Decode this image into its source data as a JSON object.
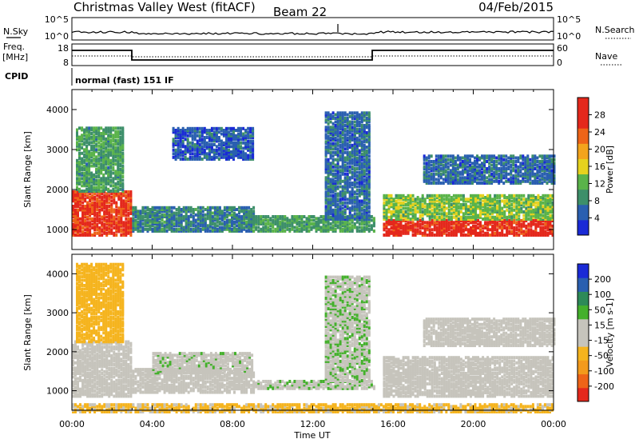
{
  "header": {
    "station": "Christmas Valley West (fitACF)",
    "beam": "Beam 22",
    "date": "04/Feb/2015"
  },
  "strip_labels": {
    "nsky": "N.Sky",
    "nsky_tick_hi": "10^5",
    "nsky_tick_lo": "10^0",
    "nsearch": "N.Search",
    "nsearch_tick_hi": "10^5",
    "nsearch_tick_lo": "10^0",
    "freq": "Freq.",
    "freq_unit": "[MHz]",
    "freq_tick_hi": "18",
    "freq_tick_lo": "8",
    "nave": "Nave",
    "nave_tick_hi": "60",
    "nave_tick_lo": "0",
    "cpid": "CPID",
    "cpid_value": "normal (fast) 151 IF"
  },
  "colors": {
    "power_scale": [
      "#1a2ad6",
      "#2a5fb0",
      "#3d8f6a",
      "#5ab34a",
      "#e6d21e",
      "#f3a41c",
      "#ee6418",
      "#e4281c",
      "#e4281c"
    ],
    "velocity_scale": [
      "#e4281c",
      "#ee6418",
      "#f39a1c",
      "#f5b41e",
      "#c6c4bc",
      "#c6c4bc",
      "#44b02c",
      "#2d8a58",
      "#2a5fb0",
      "#1a2ad6"
    ]
  },
  "chart_data": [
    {
      "type": "heatmap",
      "panel": "power",
      "ylabel": "Slant Range [km]",
      "yticks": [
        "1000",
        "2000",
        "3000",
        "4000"
      ],
      "ylim": [
        500,
        4500
      ],
      "xlim": [
        0,
        24
      ],
      "colorbar": {
        "label": "Power [dB]",
        "ticks": [
          "4",
          "8",
          "12",
          "16",
          "20",
          "24",
          "28"
        ],
        "range": [
          0,
          32
        ]
      },
      "regions": [
        {
          "t": [
            0.0,
            2.9
          ],
          "r": [
            900,
            2000
          ],
          "level": 26
        },
        {
          "t": [
            0.2,
            2.6
          ],
          "r": [
            2000,
            3600
          ],
          "level": 10
        },
        {
          "t": [
            3.0,
            9.0
          ],
          "r": [
            1000,
            1600
          ],
          "level": 8
        },
        {
          "t": [
            5.0,
            9.0
          ],
          "r": [
            2800,
            3600
          ],
          "level": 5
        },
        {
          "t": [
            9.0,
            15.0
          ],
          "r": [
            1000,
            1400
          ],
          "level": 10
        },
        {
          "t": [
            12.6,
            14.8
          ],
          "r": [
            1300,
            4000
          ],
          "level": 6
        },
        {
          "t": [
            15.5,
            24.0
          ],
          "r": [
            900,
            1300
          ],
          "level": 27
        },
        {
          "t": [
            15.5,
            24.0
          ],
          "r": [
            1300,
            1900
          ],
          "level": 13
        },
        {
          "t": [
            17.5,
            24.0
          ],
          "r": [
            2200,
            2900
          ],
          "level": 6
        }
      ]
    },
    {
      "type": "heatmap",
      "panel": "velocity",
      "ylabel": "Slant Range [km]",
      "yticks": [
        "1000",
        "2000",
        "3000",
        "4000"
      ],
      "ylim": [
        500,
        4500
      ],
      "xlim": [
        0,
        24
      ],
      "xticks": [
        "00:00",
        "04:00",
        "08:00",
        "12:00",
        "16:00",
        "20:00",
        "00:00"
      ],
      "xlabel": "Time UT",
      "colorbar": {
        "label": "Velocity [m s-1]",
        "ticks": [
          "-200",
          "-100",
          "-50",
          "-15",
          "15",
          "50",
          "100",
          "200"
        ],
        "range": [
          -250,
          250
        ]
      },
      "regions": [
        {
          "t": [
            0.0,
            2.9
          ],
          "r": [
            900,
            2300
          ],
          "level": 0
        },
        {
          "t": [
            0.2,
            2.6
          ],
          "r": [
            2300,
            4300
          ],
          "level": -80
        },
        {
          "t": [
            3.0,
            9.0
          ],
          "r": [
            1000,
            1600
          ],
          "level": 0
        },
        {
          "t": [
            4.0,
            9.0
          ],
          "r": [
            1500,
            2000
          ],
          "level": 35
        },
        {
          "t": [
            9.0,
            15.0
          ],
          "r": [
            1100,
            1300
          ],
          "level": 40
        },
        {
          "t": [
            12.6,
            14.8
          ],
          "r": [
            1300,
            4000
          ],
          "level": 40
        },
        {
          "t": [
            15.5,
            24.0
          ],
          "r": [
            900,
            1900
          ],
          "level": 0
        },
        {
          "t": [
            17.5,
            24.0
          ],
          "r": [
            2200,
            2900
          ],
          "level": 0
        },
        {
          "t": [
            0.0,
            24.0
          ],
          "r": [
            500,
            700
          ],
          "level": -60
        }
      ]
    }
  ]
}
